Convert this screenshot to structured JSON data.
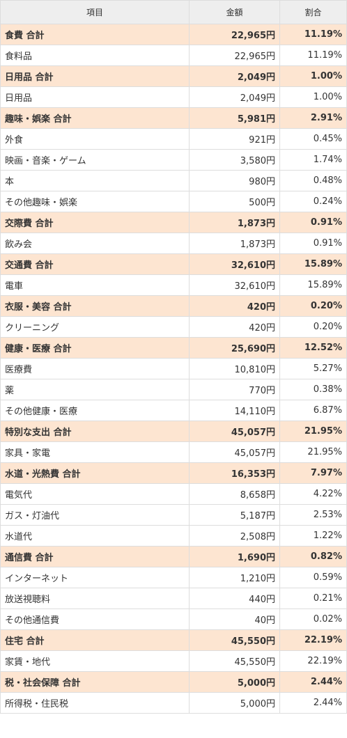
{
  "header": {
    "item": "項目",
    "amount": "金額",
    "ratio": "割合"
  },
  "rows": [
    {
      "type": "total",
      "item": "食費 合計",
      "amount": "22,965円",
      "ratio": "11.19%"
    },
    {
      "type": "detail",
      "item": "食料品",
      "amount": "22,965円",
      "ratio": "11.19%"
    },
    {
      "type": "total",
      "item": "日用品 合計",
      "amount": "2,049円",
      "ratio": "1.00%"
    },
    {
      "type": "detail",
      "item": "日用品",
      "amount": "2,049円",
      "ratio": "1.00%"
    },
    {
      "type": "total",
      "item": "趣味・娯楽 合計",
      "amount": "5,981円",
      "ratio": "2.91%"
    },
    {
      "type": "detail",
      "item": "外食",
      "amount": "921円",
      "ratio": "0.45%"
    },
    {
      "type": "detail",
      "item": "映画・音楽・ゲーム",
      "amount": "3,580円",
      "ratio": "1.74%"
    },
    {
      "type": "detail",
      "item": "本",
      "amount": "980円",
      "ratio": "0.48%"
    },
    {
      "type": "detail",
      "item": "その他趣味・娯楽",
      "amount": "500円",
      "ratio": "0.24%"
    },
    {
      "type": "total",
      "item": "交際費 合計",
      "amount": "1,873円",
      "ratio": "0.91%"
    },
    {
      "type": "detail",
      "item": "飲み会",
      "amount": "1,873円",
      "ratio": "0.91%"
    },
    {
      "type": "total",
      "item": "交通費 合計",
      "amount": "32,610円",
      "ratio": "15.89%"
    },
    {
      "type": "detail",
      "item": "電車",
      "amount": "32,610円",
      "ratio": "15.89%"
    },
    {
      "type": "total",
      "item": "衣服・美容 合計",
      "amount": "420円",
      "ratio": "0.20%"
    },
    {
      "type": "detail",
      "item": "クリーニング",
      "amount": "420円",
      "ratio": "0.20%"
    },
    {
      "type": "total",
      "item": "健康・医療 合計",
      "amount": "25,690円",
      "ratio": "12.52%"
    },
    {
      "type": "detail",
      "item": "医療費",
      "amount": "10,810円",
      "ratio": "5.27%"
    },
    {
      "type": "detail",
      "item": "薬",
      "amount": "770円",
      "ratio": "0.38%"
    },
    {
      "type": "detail",
      "item": "その他健康・医療",
      "amount": "14,110円",
      "ratio": "6.87%"
    },
    {
      "type": "total",
      "item": "特別な支出 合計",
      "amount": "45,057円",
      "ratio": "21.95%"
    },
    {
      "type": "detail",
      "item": "家具・家電",
      "amount": "45,057円",
      "ratio": "21.95%"
    },
    {
      "type": "total",
      "item": "水道・光熱費 合計",
      "amount": "16,353円",
      "ratio": "7.97%"
    },
    {
      "type": "detail",
      "item": "電気代",
      "amount": "8,658円",
      "ratio": "4.22%"
    },
    {
      "type": "detail",
      "item": "ガス・灯油代",
      "amount": "5,187円",
      "ratio": "2.53%"
    },
    {
      "type": "detail",
      "item": "水道代",
      "amount": "2,508円",
      "ratio": "1.22%"
    },
    {
      "type": "total",
      "item": "通信費 合計",
      "amount": "1,690円",
      "ratio": "0.82%"
    },
    {
      "type": "detail",
      "item": "インターネット",
      "amount": "1,210円",
      "ratio": "0.59%"
    },
    {
      "type": "detail",
      "item": "放送視聴料",
      "amount": "440円",
      "ratio": "0.21%"
    },
    {
      "type": "detail",
      "item": "その他通信費",
      "amount": "40円",
      "ratio": "0.02%"
    },
    {
      "type": "total",
      "item": "住宅 合計",
      "amount": "45,550円",
      "ratio": "22.19%"
    },
    {
      "type": "detail",
      "item": "家賃・地代",
      "amount": "45,550円",
      "ratio": "22.19%"
    },
    {
      "type": "total",
      "item": "税・社会保障 合計",
      "amount": "5,000円",
      "ratio": "2.44%"
    },
    {
      "type": "detail",
      "item": "所得税・住民税",
      "amount": "5,000円",
      "ratio": "2.44%"
    }
  ],
  "colors": {
    "total_row_bg": "#fde5d1",
    "header_bg": "#eeeeee",
    "border": "#dddddd",
    "text": "#333333"
  }
}
